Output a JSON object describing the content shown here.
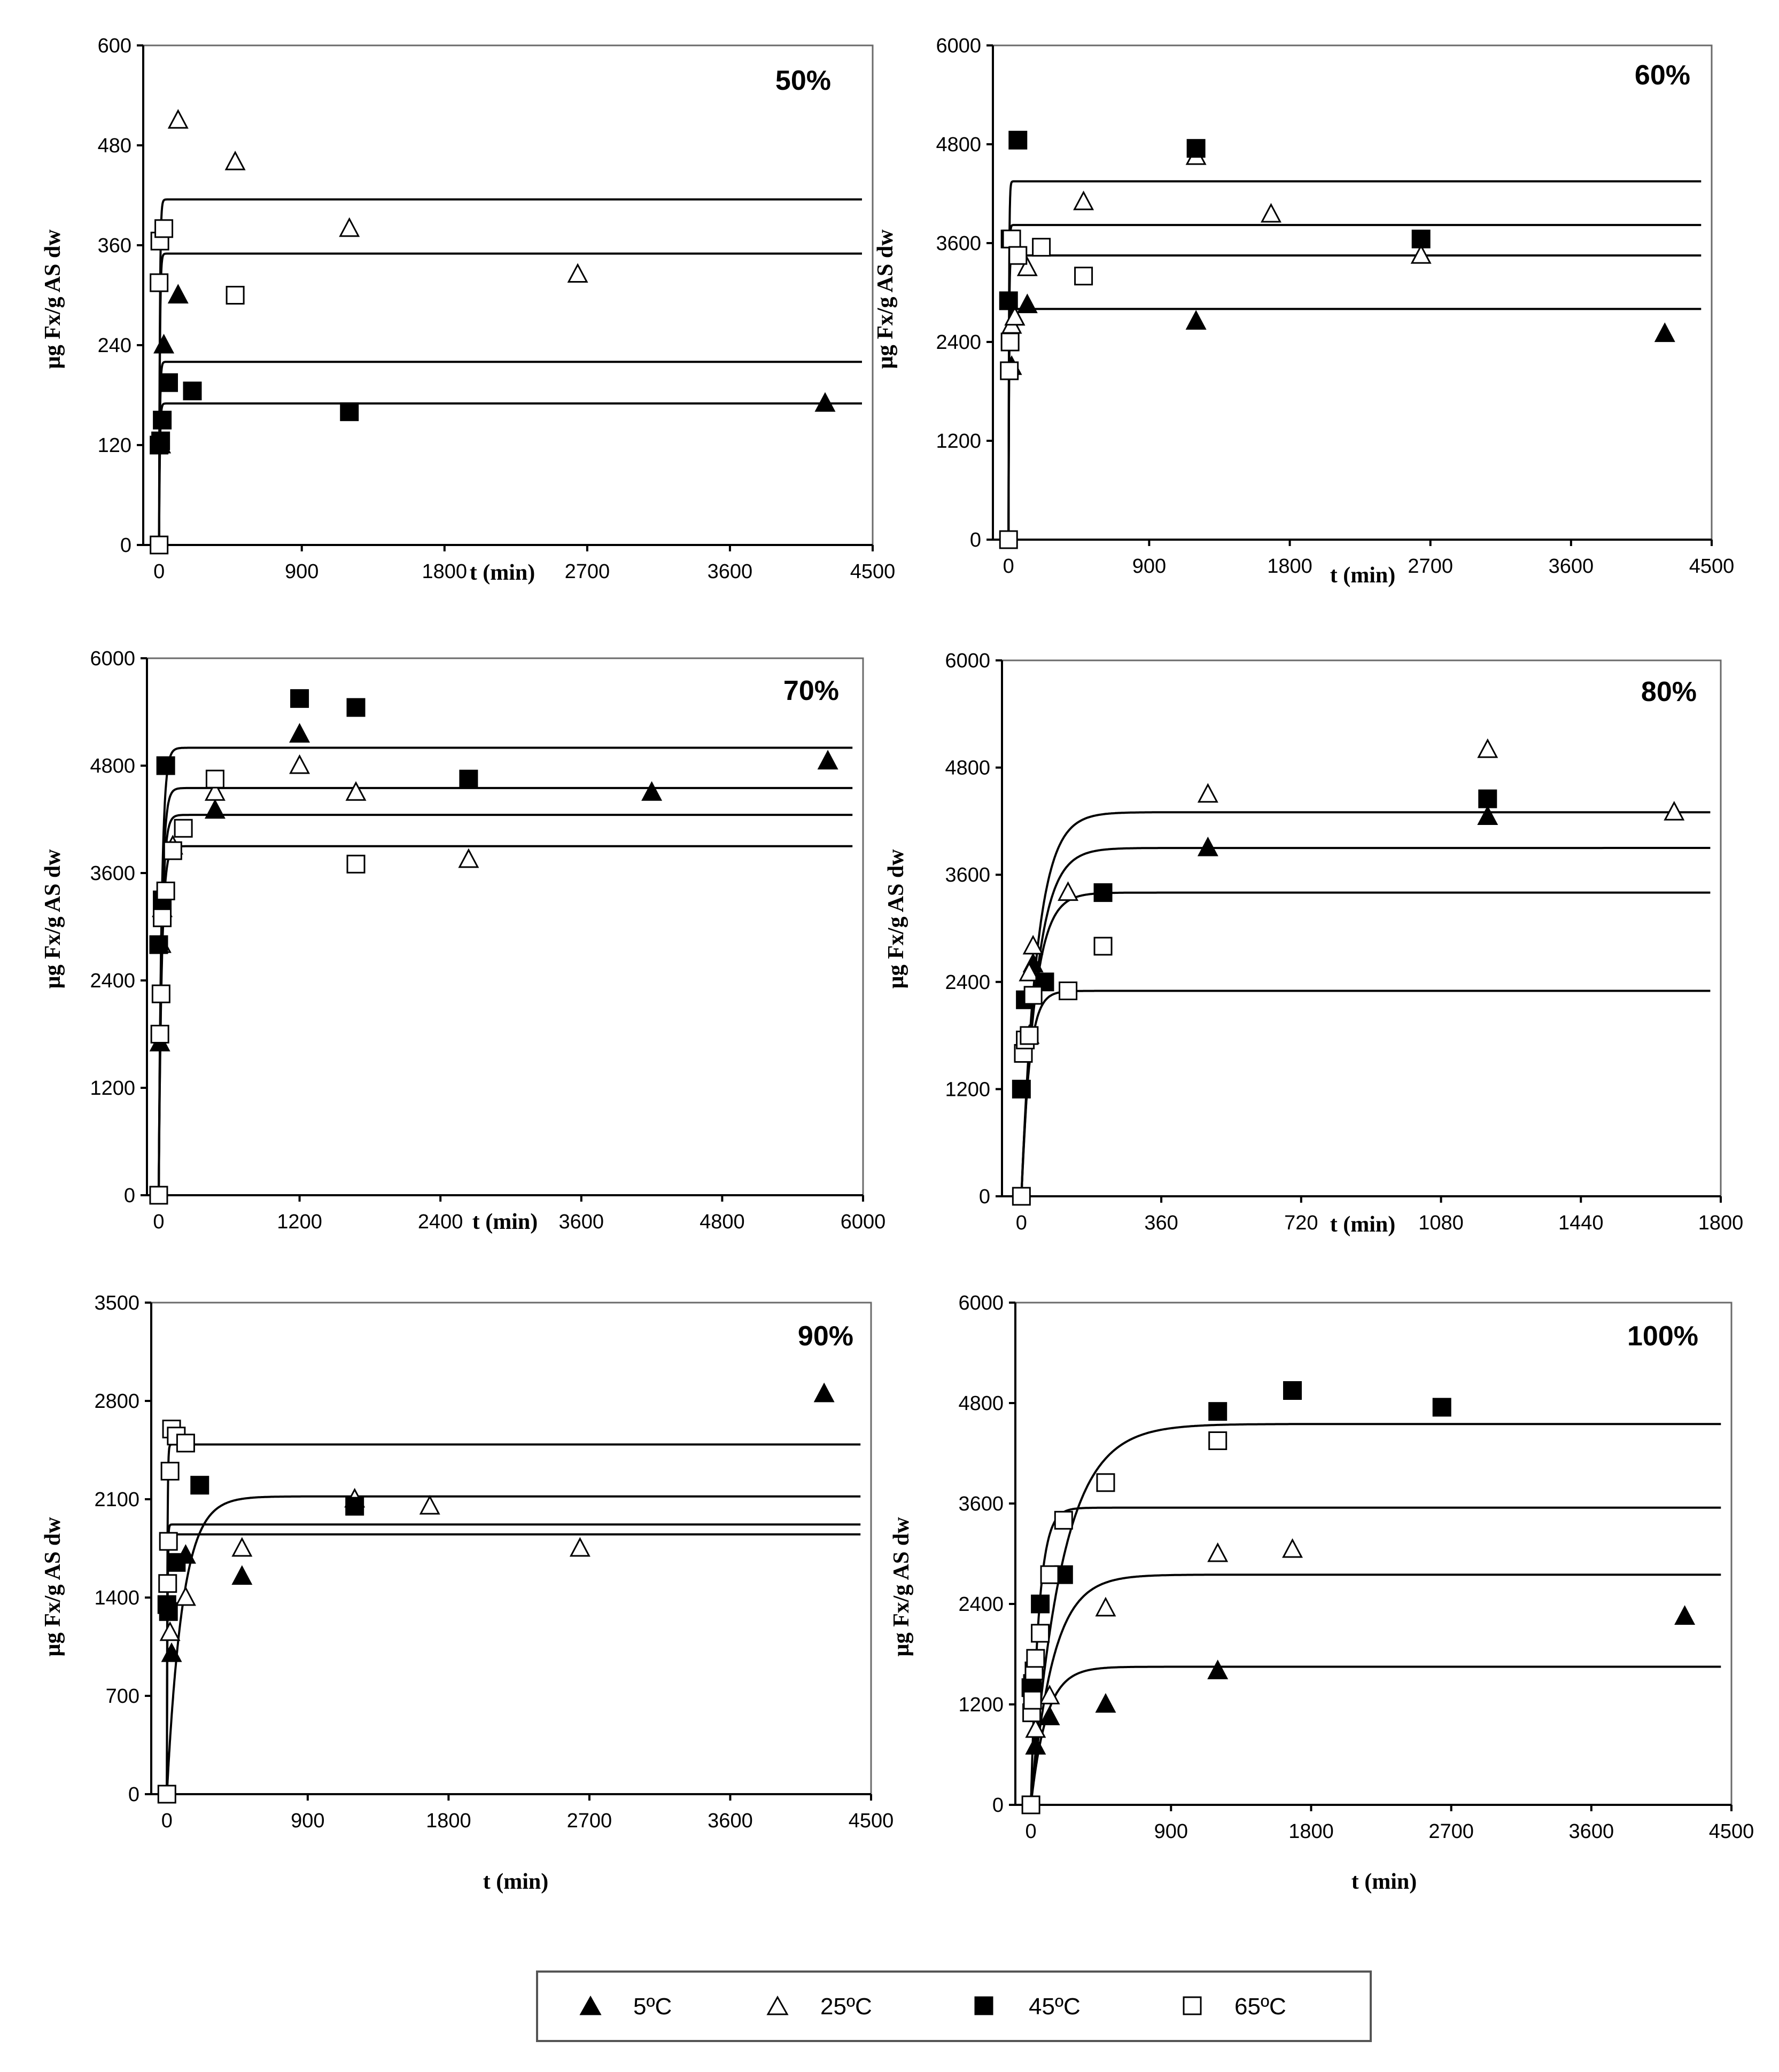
{
  "legend": {
    "items": [
      {
        "label": "5ºC",
        "marker": "filled-triangle"
      },
      {
        "label": "25ºC",
        "marker": "open-triangle"
      },
      {
        "label": "45ºC",
        "marker": "filled-square"
      },
      {
        "label": "65ºC",
        "marker": "open-square"
      }
    ]
  },
  "chart_data": [
    {
      "type": "scatter",
      "title": "50%",
      "xlabel": "t (min)",
      "ylabel": "µg Fx/g AS dw",
      "xlim": [
        -100,
        4500
      ],
      "ylim": [
        0,
        600
      ],
      "xticks": [
        0,
        900,
        1800,
        2700,
        3600,
        4500
      ],
      "yticks": [
        0,
        120,
        240,
        360,
        480,
        600
      ],
      "series": [
        {
          "name": "5ºC",
          "marker": "filled-triangle",
          "x": [
            10,
            30,
            120,
            4200
          ],
          "y": [
            120,
            240,
            300,
            170
          ]
        },
        {
          "name": "25ºC",
          "marker": "open-triangle",
          "x": [
            120,
            480,
            1200,
            2640
          ],
          "y": [
            510,
            460,
            380,
            325
          ]
        },
        {
          "name": "45ºC",
          "marker": "filled-square",
          "x": [
            0,
            10,
            20,
            60,
            210,
            1200
          ],
          "y": [
            120,
            125,
            150,
            195,
            185,
            160
          ]
        },
        {
          "name": "65ºC",
          "marker": "open-square",
          "x": [
            0,
            0,
            5,
            30,
            480
          ],
          "y": [
            0,
            315,
            365,
            380,
            300
          ]
        }
      ],
      "fits": [
        {
          "plateau": 170,
          "k": 0.2
        },
        {
          "plateau": 220,
          "k": 0.2
        },
        {
          "plateau": 350,
          "k": 0.2
        },
        {
          "plateau": 415,
          "k": 0.2
        }
      ]
    },
    {
      "type": "scatter",
      "title": "60%",
      "xlabel": "t (min)",
      "ylabel": "µg Fx/g AS dw",
      "xlim": [
        -100,
        4500
      ],
      "ylim": [
        0,
        6000
      ],
      "xticks": [
        0,
        900,
        1800,
        2700,
        3600,
        4500
      ],
      "yticks": [
        0,
        1200,
        2400,
        3600,
        4800,
        6000
      ],
      "series": [
        {
          "name": "5ºC",
          "marker": "filled-triangle",
          "x": [
            20,
            40,
            120,
            1200,
            4200
          ],
          "y": [
            2100,
            2700,
            2850,
            2650,
            2500
          ]
        },
        {
          "name": "25ºC",
          "marker": "open-triangle",
          "x": [
            20,
            40,
            120,
            480,
            1200,
            1680,
            2640
          ],
          "y": [
            2600,
            2700,
            3300,
            4100,
            4650,
            3950,
            3450
          ]
        },
        {
          "name": "45ºC",
          "marker": "filled-square",
          "x": [
            0,
            10,
            60,
            1200,
            2640
          ],
          "y": [
            2900,
            3650,
            4850,
            4750,
            3650
          ]
        },
        {
          "name": "65ºC",
          "marker": "open-square",
          "x": [
            0,
            5,
            10,
            20,
            60,
            210,
            480
          ],
          "y": [
            0,
            2050,
            2400,
            3650,
            3450,
            3550,
            3200
          ]
        }
      ],
      "fits": [
        {
          "plateau": 2800,
          "k": 0.3
        },
        {
          "plateau": 3450,
          "k": 0.3
        },
        {
          "plateau": 3820,
          "k": 0.3
        },
        {
          "plateau": 4350,
          "k": 0.3
        }
      ]
    },
    {
      "type": "scatter",
      "title": "70%",
      "xlabel": "t (min)",
      "ylabel": "µg Fx/g AS dw",
      "xlim": [
        -100,
        6000
      ],
      "ylim": [
        0,
        6000
      ],
      "xticks": [
        0,
        1200,
        2400,
        3600,
        4800,
        6000
      ],
      "yticks": [
        0,
        1200,
        2400,
        3600,
        4800,
        6000
      ],
      "series": [
        {
          "name": "5ºC",
          "marker": "filled-triangle",
          "x": [
            10,
            30,
            120,
            480,
            1200,
            4200,
            5700
          ],
          "y": [
            1700,
            3200,
            3900,
            4300,
            5150,
            4500,
            4850
          ]
        },
        {
          "name": "25ºC",
          "marker": "open-triangle",
          "x": [
            20,
            120,
            480,
            1200,
            1680,
            2640
          ],
          "y": [
            2800,
            3900,
            4500,
            4800,
            4500,
            3750
          ]
        },
        {
          "name": "45ºC",
          "marker": "filled-square",
          "x": [
            0,
            30,
            60,
            1200,
            1680,
            2640
          ],
          "y": [
            2800,
            3300,
            4800,
            5550,
            5450,
            4650
          ]
        },
        {
          "name": "65ºC",
          "marker": "open-square",
          "x": [
            0,
            10,
            20,
            30,
            60,
            120,
            210,
            480,
            1680
          ],
          "y": [
            0,
            1800,
            2250,
            3100,
            3400,
            3850,
            4100,
            4650,
            3700
          ]
        }
      ],
      "fits": [
        {
          "plateau": 3900,
          "k": 0.04
        },
        {
          "plateau": 4250,
          "k": 0.04
        },
        {
          "plateau": 4550,
          "k": 0.04
        },
        {
          "plateau": 5000,
          "k": 0.04
        }
      ]
    },
    {
      "type": "scatter",
      "title": "80%",
      "xlabel": "t (min)",
      "ylabel": "µg Fx/g AS dw",
      "xlim": [
        -50,
        1800
      ],
      "ylim": [
        0,
        6000
      ],
      "xticks": [
        0,
        360,
        720,
        1080,
        1440,
        1800
      ],
      "yticks": [
        0,
        1200,
        2400,
        3600,
        4800,
        6000
      ],
      "series": [
        {
          "name": "5ºC",
          "marker": "filled-triangle",
          "x": [
            20,
            30,
            480,
            1200
          ],
          "y": [
            1800,
            2600,
            3900,
            4250
          ]
        },
        {
          "name": "25ºC",
          "marker": "open-triangle",
          "x": [
            20,
            30,
            120,
            480,
            1200,
            1680
          ],
          "y": [
            2500,
            2800,
            3400,
            4500,
            5000,
            4300
          ]
        },
        {
          "name": "45ºC",
          "marker": "filled-square",
          "x": [
            0,
            10,
            60,
            210,
            1200
          ],
          "y": [
            1200,
            2200,
            2400,
            3400,
            4450
          ]
        },
        {
          "name": "65ºC",
          "marker": "open-square",
          "x": [
            0,
            5,
            10,
            20,
            30,
            120,
            210
          ],
          "y": [
            0,
            1600,
            1750,
            1800,
            2250,
            2300,
            2800
          ]
        }
      ],
      "fits": [
        {
          "plateau": 2300,
          "k": 0.05
        },
        {
          "plateau": 3400,
          "k": 0.03
        },
        {
          "plateau": 3900,
          "k": 0.025
        },
        {
          "plateau": 4300,
          "k": 0.025
        }
      ]
    },
    {
      "type": "scatter",
      "title": "90%",
      "xlabel": "t (min)",
      "ylabel": "µg Fx/g AS dw",
      "xlim": [
        -100,
        4500
      ],
      "ylim": [
        0,
        3500
      ],
      "xticks": [
        0,
        900,
        1800,
        2700,
        3600,
        4500
      ],
      "yticks": [
        0,
        700,
        1400,
        2100,
        2800,
        3500
      ],
      "series": [
        {
          "name": "5ºC",
          "marker": "filled-triangle",
          "x": [
            30,
            120,
            480,
            4200
          ],
          "y": [
            1000,
            1700,
            1550,
            2850
          ]
        },
        {
          "name": "25ºC",
          "marker": "open-triangle",
          "x": [
            20,
            120,
            480,
            1200,
            1680,
            2640
          ],
          "y": [
            1150,
            1400,
            1750,
            2100,
            2050,
            1750
          ]
        },
        {
          "name": "45ºC",
          "marker": "filled-square",
          "x": [
            0,
            10,
            60,
            210,
            1200
          ],
          "y": [
            1350,
            1300,
            1650,
            2200,
            2050
          ]
        },
        {
          "name": "65ºC",
          "marker": "open-square",
          "x": [
            0,
            5,
            10,
            20,
            30,
            60,
            120
          ],
          "y": [
            0,
            1500,
            1800,
            2300,
            2600,
            2550,
            2500
          ]
        }
      ],
      "fits": [
        {
          "plateau": 1850,
          "k": 0.3
        },
        {
          "plateau": 1920,
          "k": 0.3
        },
        {
          "plateau": 2120,
          "k": 0.01
        },
        {
          "plateau": 2490,
          "k": 0.3
        }
      ]
    },
    {
      "type": "scatter",
      "title": "100%",
      "xlabel": "t (min)",
      "ylabel": "µg Fx/g AS dw",
      "xlim": [
        -100,
        4500
      ],
      "ylim": [
        0,
        6000
      ],
      "xticks": [
        0,
        900,
        1800,
        2700,
        3600,
        4500
      ],
      "yticks": [
        0,
        1200,
        2400,
        3600,
        4800,
        6000
      ],
      "series": [
        {
          "name": "5ºC",
          "marker": "filled-triangle",
          "x": [
            30,
            120,
            480,
            1200,
            4200
          ],
          "y": [
            700,
            1050,
            1200,
            1600,
            2250
          ]
        },
        {
          "name": "25ºC",
          "marker": "open-triangle",
          "x": [
            30,
            120,
            480,
            1200,
            1680
          ],
          "y": [
            900,
            1300,
            2350,
            3000,
            3050
          ]
        },
        {
          "name": "45ºC",
          "marker": "filled-square",
          "x": [
            0,
            10,
            60,
            210,
            1200,
            1680,
            2640
          ],
          "y": [
            1400,
            1450,
            2400,
            2750,
            4700,
            4950,
            4750
          ]
        },
        {
          "name": "65ºC",
          "marker": "open-square",
          "x": [
            0,
            5,
            10,
            20,
            30,
            60,
            120,
            210,
            480,
            1200
          ],
          "y": [
            0,
            1100,
            1250,
            1600,
            1750,
            2050,
            2750,
            3400,
            3850,
            4350
          ]
        }
      ],
      "fits": [
        {
          "plateau": 1650,
          "k": 0.01
        },
        {
          "plateau": 2750,
          "k": 0.007
        },
        {
          "plateau": 3550,
          "k": 0.02
        },
        {
          "plateau": 4550,
          "k": 0.005
        }
      ]
    }
  ]
}
